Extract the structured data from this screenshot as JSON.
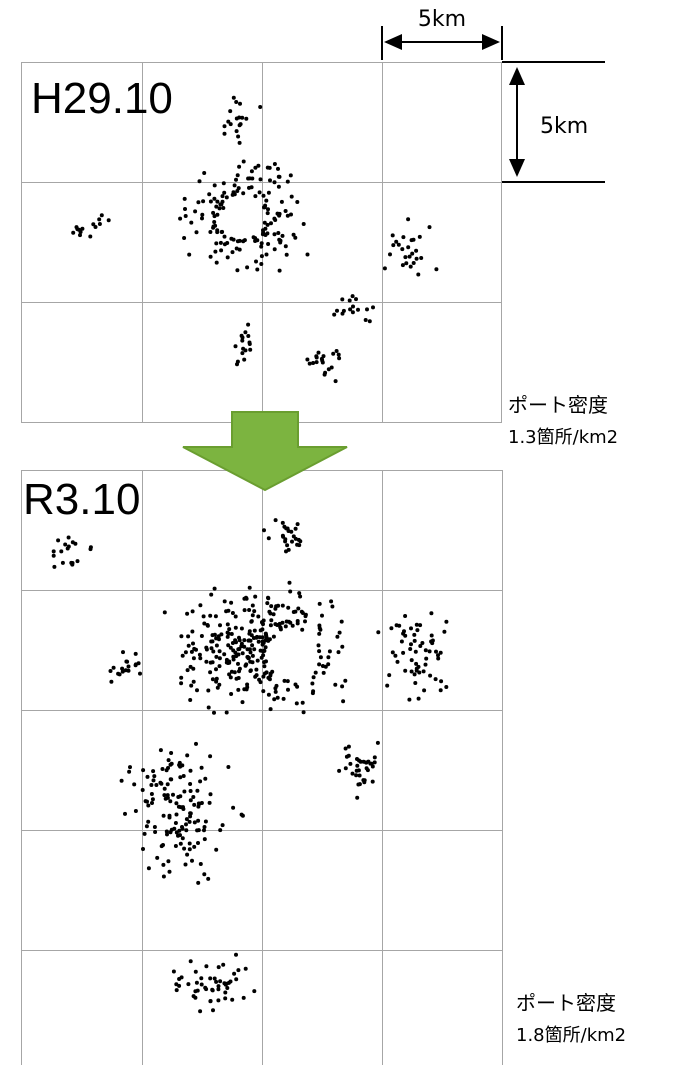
{
  "scale": {
    "horizontal_label": "5km",
    "vertical_label": "5km"
  },
  "panels": [
    {
      "id": "h29",
      "period_label": "H29.10",
      "density_label": "ポート密度",
      "density_value": "1.3箇所/km2"
    },
    {
      "id": "r3",
      "period_label": "R3.10",
      "density_label": "ポート密度",
      "density_value": "1.8箇所/km2"
    }
  ],
  "colors": {
    "grid": "#a6a6a6",
    "point": "#000000",
    "arrow_fill": "#7cb440",
    "arrow_stroke": "#6a9e30"
  }
}
